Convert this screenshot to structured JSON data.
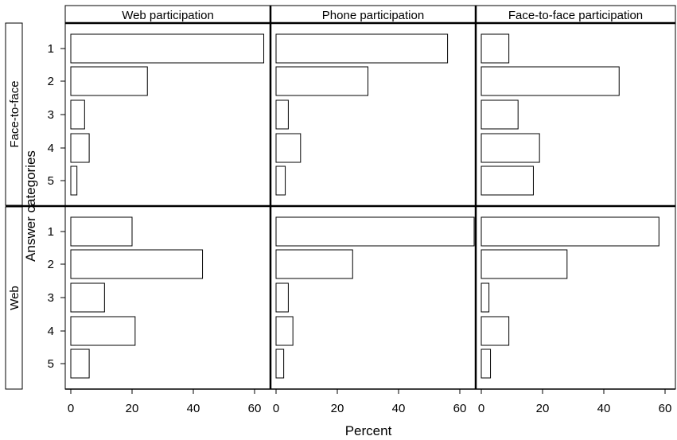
{
  "chart_data": {
    "type": "bar",
    "orientation": "horizontal",
    "xlabel": "Percent",
    "ylabel": "Answer categories",
    "xlim": [
      0,
      65
    ],
    "xticks": [
      0,
      20,
      40,
      60
    ],
    "categories": [
      "1",
      "2",
      "3",
      "4",
      "5"
    ],
    "columns": [
      "Web participation",
      "Phone participation",
      "Face-to-face participation"
    ],
    "rows": [
      "Face-to-face",
      "Web"
    ],
    "grid": false,
    "panels": [
      {
        "row": "Face-to-face",
        "column": "Web participation",
        "values": [
          63,
          25,
          4.5,
          6,
          2
        ]
      },
      {
        "row": "Face-to-face",
        "column": "Phone participation",
        "values": [
          56,
          30,
          4,
          8,
          3
        ]
      },
      {
        "row": "Face-to-face",
        "column": "Face-to-face participation",
        "values": [
          9,
          45,
          12,
          19,
          17
        ]
      },
      {
        "row": "Web",
        "column": "Web participation",
        "values": [
          20,
          43,
          11,
          21,
          6
        ]
      },
      {
        "row": "Web",
        "column": "Phone participation",
        "values": [
          65,
          25,
          4,
          5.5,
          2.5
        ]
      },
      {
        "row": "Web",
        "column": "Face-to-face participation",
        "values": [
          58,
          28,
          2.5,
          9,
          3
        ]
      }
    ]
  }
}
